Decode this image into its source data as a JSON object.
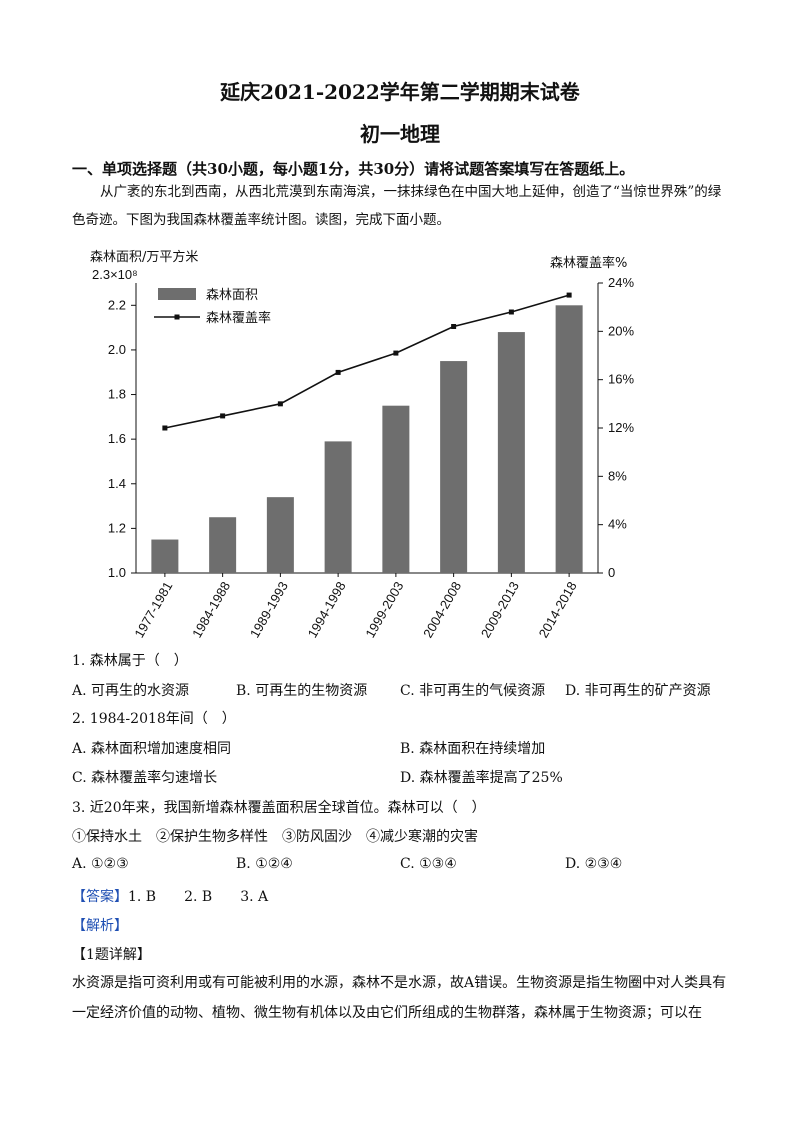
{
  "header": {
    "title": "延庆2021-2022学年第二学期期末试卷",
    "subtitle": "初一地理"
  },
  "section": {
    "heading": "一、单项选择题（共30小题，每小题1分，共30分）请将试题答案填写在答题纸上。",
    "intro": "从广袤的东北到西南，从西北荒漠到东南海滨，一抹抹绿色在中国大地上延伸，创造了“当惊世界殊”的绿色奇迹。下图为我国森林覆盖率统计图。读图，完成下面小题。"
  },
  "chart_data": {
    "type": "bar",
    "ylabel_left": "森林面积/万平方米",
    "ylabel_right": "森林覆盖率%",
    "left_exponent": "2.3×10⁸",
    "left_ticks": [
      "1.0",
      "1.2",
      "1.4",
      "1.6",
      "1.8",
      "2.0",
      "2.2"
    ],
    "right_ticks": [
      "0",
      "4%",
      "8%",
      "12%",
      "16%",
      "20%",
      "24%"
    ],
    "ylim_left": [
      1.0,
      2.3
    ],
    "ylim_right": [
      0,
      24
    ],
    "categories": [
      "1977-1981",
      "1984-1988",
      "1989-1993",
      "1994-1998",
      "1999-2003",
      "2004-2008",
      "2009-2013",
      "2014-2018"
    ],
    "series": [
      {
        "name": "森林面积",
        "type": "bar",
        "axis": "left",
        "values": [
          1.15,
          1.25,
          1.34,
          1.59,
          1.75,
          1.95,
          2.08,
          2.2
        ]
      },
      {
        "name": "森林覆盖率",
        "type": "line",
        "axis": "right",
        "values": [
          12.0,
          13.0,
          14.0,
          16.6,
          18.2,
          20.4,
          21.6,
          23.0
        ]
      }
    ],
    "legend": "top-left",
    "colors": {
      "bar": "#6e6e6e",
      "line": "#111111"
    }
  },
  "questions": [
    {
      "stem": "1. 森林属于（　）",
      "options": [
        "A. 可再生的水资源",
        "B. 可再生的生物资源",
        "C. 非可再生的气候资源",
        "D. 非可再生的矿产资源"
      ]
    },
    {
      "stem": "2. 1984-2018年间（　）",
      "options": [
        "A. 森林面积增加速度相同",
        "B. 森林面积在持续增加",
        "C. 森林覆盖率匀速增长",
        "D. 森林覆盖率提高了25%"
      ]
    },
    {
      "stem": "3. 近20年来，我国新增森林覆盖面积居全球首位。森林可以（　）",
      "sub": "①保持水土　②保护生物多样性　③防风固沙　④减少寒潮的灾害",
      "options": [
        "A. ①②③",
        "B. ①②④",
        "C. ①③④",
        "D. ②③④"
      ]
    }
  ],
  "answer": {
    "label": "【答案】",
    "items": [
      "1. B",
      "2. B",
      "3. A"
    ]
  },
  "analysis": {
    "label": "【解析】",
    "detail_label": "【1题详解】",
    "text": "水资源是指可资利用或有可能被利用的水源，森林不是水源，故A错误。生物资源是指生物圈中对人类具有一定经济价值的动物、植物、微生物有机体以及由它们所组成的生物群落，森林属于生物资源；可以在"
  }
}
